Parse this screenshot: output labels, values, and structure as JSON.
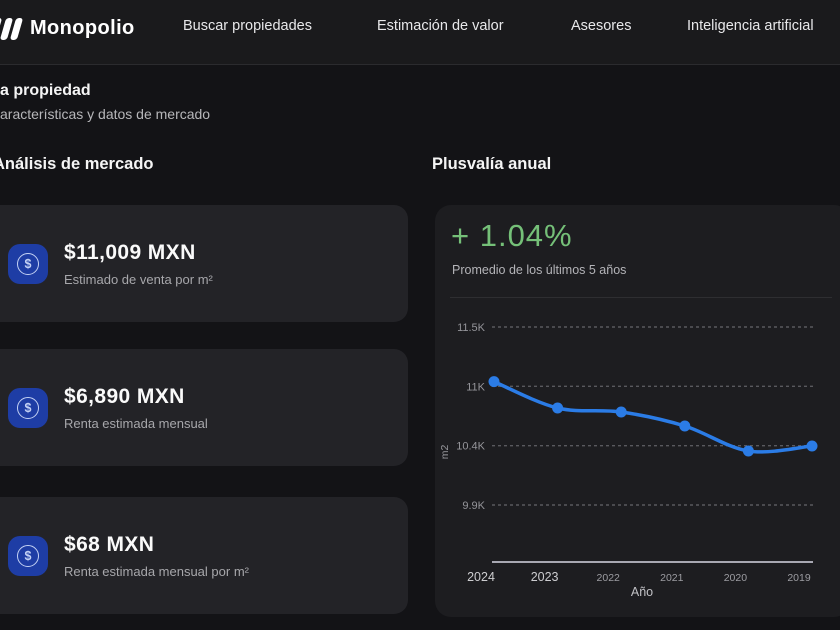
{
  "nav": {
    "brand": "Monopolio",
    "links": [
      {
        "label": "Buscar propiedades"
      },
      {
        "label": "Estimación de valor"
      },
      {
        "label": "Asesores"
      },
      {
        "label": "Inteligencia artificial"
      }
    ]
  },
  "header": {
    "title": "a propiedad",
    "subtitle": "aracterísticas y datos de mercado"
  },
  "sections": {
    "market_analysis_title": "Análisis de mercado",
    "appreciation_title": "Plusvalía anual"
  },
  "stats": [
    {
      "icon": "dollar-circle-icon",
      "icon_glyph": "$",
      "value": "$11,009 MXN",
      "label": "Estimado de venta por m²"
    },
    {
      "icon": "dollar-circle-icon",
      "icon_glyph": "$",
      "value": "$6,890 MXN",
      "label": "Renta estimada mensual"
    },
    {
      "icon": "dollar-circle-icon",
      "icon_glyph": "$",
      "value": "$68 MXN",
      "label": "Renta estimada mensual por m²"
    }
  ],
  "plusvalia": {
    "delta": "+ 1.04%",
    "delta_color": "#75c078",
    "caption": "Promedio de los últimos 5 años"
  },
  "chart_data": {
    "type": "line",
    "title": "Plusvalía anual",
    "categories": [
      "2024",
      "2023",
      "2022",
      "2021",
      "2020",
      "2019"
    ],
    "values": [
      11009,
      10772,
      10736,
      10610,
      10385,
      10430
    ],
    "xlabel": "Año",
    "ylabel": "m2",
    "ylim": [
      9900,
      11500
    ],
    "yticks": [
      {
        "label": "11.5K",
        "value": 11500
      },
      {
        "label": "11K",
        "value": 10967
      },
      {
        "label": "10.4K",
        "value": 10433
      },
      {
        "label": "9.9K",
        "value": 9900
      }
    ],
    "grid": "horizontal-dashed",
    "legend": "none",
    "line_color": "#2b7ce6",
    "axis_line_color": "#a8a8b2"
  }
}
